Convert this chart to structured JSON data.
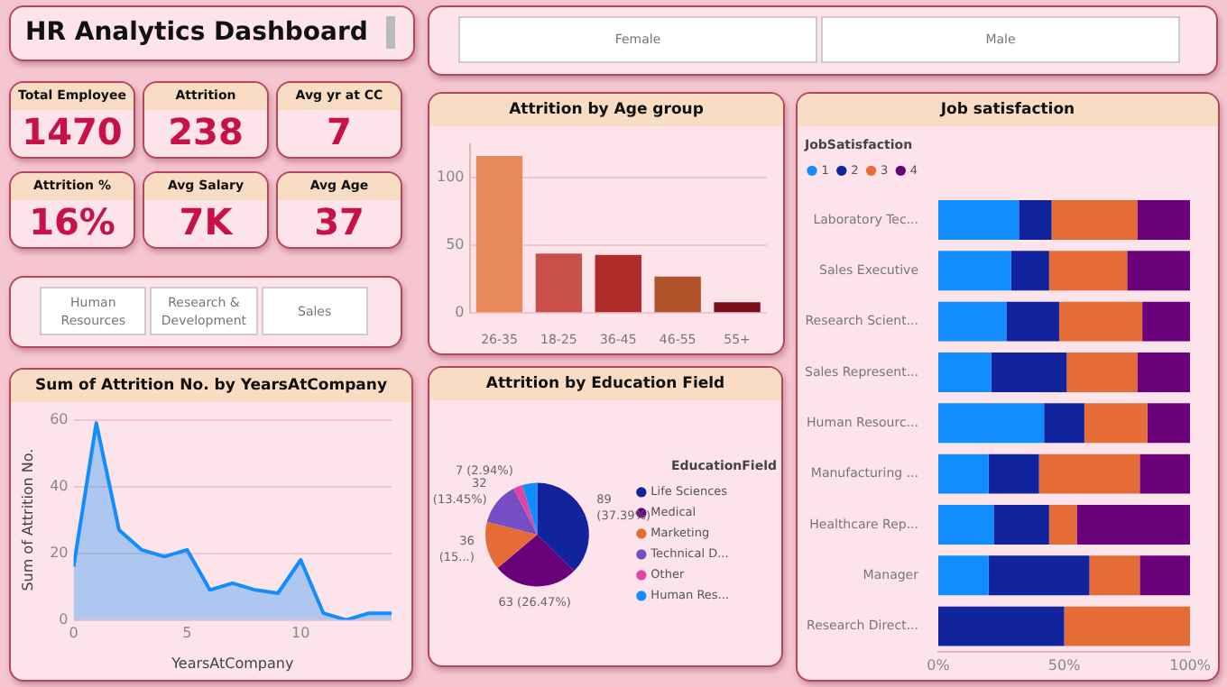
{
  "chart_data": [
    {
      "type": "other",
      "title": "HR Analytics Dashboard",
      "annotations": [
        "Total Employee",
        "1470",
        "Attrition",
        "238",
        "Avg yr at CC",
        "7",
        "Attrition %",
        "16%",
        "Avg Salary",
        "7K",
        "Avg Age",
        "37"
      ]
    },
    {
      "type": "other",
      "annotations": [
        "Female",
        "Male"
      ]
    },
    {
      "type": "other",
      "annotations": [
        "Human Resources",
        "Research & Development",
        "Sales"
      ]
    },
    {
      "type": "bar",
      "title": "Attrition by Age group",
      "categories": [
        "26-35",
        "18-25",
        "36-45",
        "46-55",
        "55+"
      ],
      "values": [
        116,
        44,
        43,
        27,
        8
      ],
      "colors": [
        "#e8895a",
        "#c9504a",
        "#b02c2a",
        "#b0532a",
        "#7a0f1a"
      ],
      "ylim": [
        0,
        125
      ],
      "yticks": [
        0,
        50,
        100
      ],
      "grid": "y"
    },
    {
      "type": "bar",
      "title": "Job satisfaction",
      "orientation": "horizontal",
      "stacked": true,
      "legend_title": "JobSatisfaction",
      "legend": "top left",
      "categories": [
        "Laboratory Tec...",
        "Sales Executive",
        "Research Scient...",
        "Sales Represent...",
        "Human Resourc...",
        "Manufacturing ...",
        "Healthcare Rep...",
        "Manager",
        "Research Direct..."
      ],
      "xlim": [
        0,
        100
      ],
      "xticks": [
        {
          "value": 0,
          "label": "0%"
        },
        {
          "value": 50,
          "label": "50%"
        },
        {
          "value": 100,
          "label": "100%"
        }
      ],
      "series": [
        {
          "name": "1",
          "color": "#118dff",
          "values": [
            32,
            29,
            27,
            21,
            42,
            20,
            22,
            20,
            0
          ]
        },
        {
          "name": "2",
          "color": "#12239e",
          "values": [
            13,
            15,
            21,
            30,
            16,
            20,
            22,
            40,
            50
          ]
        },
        {
          "name": "3",
          "color": "#e66c37",
          "values": [
            34,
            31,
            33,
            28,
            25,
            40,
            11,
            20,
            50
          ]
        },
        {
          "name": "4",
          "color": "#6b007b",
          "values": [
            21,
            25,
            19,
            21,
            17,
            20,
            45,
            20,
            0
          ]
        }
      ]
    },
    {
      "type": "area",
      "title": "Sum of Attrition No. by YearsAtCompany",
      "xlabel": "YearsAtCompany",
      "ylabel": "Sum of Attrition No.",
      "x": [
        0,
        1,
        2,
        3,
        4,
        5,
        6,
        7,
        8,
        9,
        10,
        11,
        12,
        13,
        14
      ],
      "values": [
        16,
        59,
        27,
        21,
        19,
        21,
        9,
        11,
        9,
        8,
        18,
        2,
        0,
        2,
        2
      ],
      "color": "#118dff",
      "xlim": [
        0,
        14
      ],
      "xticks": [
        0,
        5,
        10
      ],
      "ylim": [
        0,
        60
      ],
      "yticks": [
        0,
        20,
        40,
        60
      ],
      "grid": "y"
    },
    {
      "type": "pie",
      "title": "Attrition by Education Field",
      "legend_title": "EducationField",
      "legend": "right",
      "categories": [
        "Life Sciences",
        "Medical",
        "Marketing",
        "Technical D...",
        "Other",
        "Human Res..."
      ],
      "values": [
        89,
        63,
        36,
        32,
        7,
        11
      ],
      "colors": [
        "#12239e",
        "#6b007b",
        "#e66c37",
        "#744ec2",
        "#e044a7",
        "#118dff"
      ],
      "value_labels": [
        "89 (37.39%)",
        "63 (26.47%)",
        "36 (15...)",
        "32 (13.45%)",
        "7 (2.94%)",
        null
      ]
    }
  ]
}
